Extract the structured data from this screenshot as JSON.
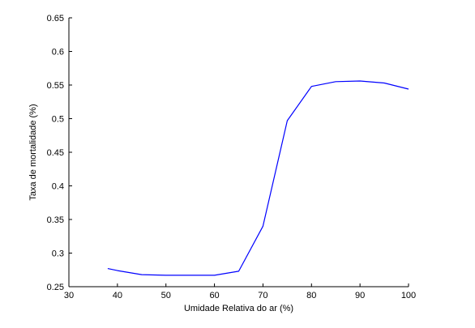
{
  "chart_data": {
    "type": "line",
    "title": "",
    "xlabel": "Umidade Relativa do ar (%)",
    "ylabel": "Taxa de mortalidade (%)",
    "xlim": [
      30,
      100
    ],
    "ylim": [
      0.25,
      0.65
    ],
    "xticks": [
      30,
      40,
      50,
      60,
      70,
      80,
      90,
      100
    ],
    "yticks": [
      0.25,
      0.3,
      0.35,
      0.4,
      0.45,
      0.5,
      0.55,
      0.6,
      0.65
    ],
    "xtick_labels": [
      "30",
      "40",
      "50",
      "60",
      "70",
      "80",
      "90",
      "100"
    ],
    "ytick_labels": [
      "0.25",
      "0.3",
      "0.35",
      "0.4",
      "0.45",
      "0.5",
      "0.55",
      "0.6",
      "0.65"
    ],
    "grid": false,
    "legend": "none",
    "series": [
      {
        "color": "#0000ff",
        "x": [
          38,
          40,
          45,
          50,
          55,
          60,
          65,
          70,
          75,
          80,
          85,
          90,
          95,
          100
        ],
        "y": [
          0.277,
          0.274,
          0.268,
          0.267,
          0.267,
          0.267,
          0.273,
          0.34,
          0.497,
          0.548,
          0.555,
          0.556,
          0.553,
          0.544
        ]
      }
    ]
  }
}
